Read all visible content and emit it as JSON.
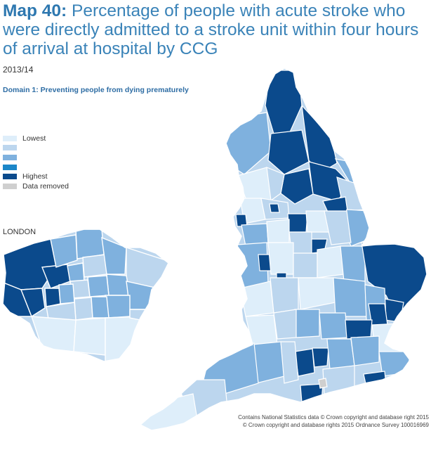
{
  "header": {
    "map_number": "Map 40:",
    "title": "Percentage of people with acute stroke who were directly admitted to a stroke unit within four hours of arrival at hospital by CCG",
    "period": "2013/14",
    "domain": "Domain 1: Preventing people from dying prematurely"
  },
  "legend": {
    "items": [
      {
        "label": "Lowest",
        "color": "#deeefa"
      },
      {
        "label": "",
        "color": "#bcd6ee"
      },
      {
        "label": "",
        "color": "#7fb1de"
      },
      {
        "label": "",
        "color": "#1b86c8"
      },
      {
        "label": "Highest",
        "color": "#0b4a8c"
      },
      {
        "label": "Data removed",
        "color": "#cfcfcf"
      }
    ]
  },
  "inset": {
    "label": "LONDON"
  },
  "credits": {
    "line1": "Contains National Statistics data © Crown copyright and database right 2015",
    "line2": "© Crown copyright and database rights 2015 Ordnance Survey 100016969"
  },
  "colors": {
    "lowest": "#deeefa",
    "low": "#bcd6ee",
    "mid": "#7fb1de",
    "high": "#1b86c8",
    "highest": "#0b4a8c",
    "removed": "#cfcfcf",
    "border": "#ffffff"
  }
}
